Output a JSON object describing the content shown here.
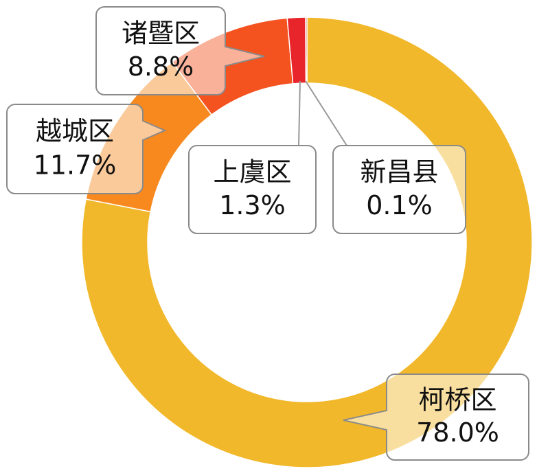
{
  "chart_data": {
    "type": "donut",
    "categories": [
      "柯桥区",
      "越城区",
      "诸暨区",
      "上虞区",
      "新昌县"
    ],
    "values": [
      78.0,
      11.7,
      8.8,
      1.3,
      0.1
    ],
    "value_labels": [
      "78.0%",
      "11.7%",
      "8.8%",
      "1.3%",
      "0.1%"
    ],
    "colors": [
      "#f2b82b",
      "#f7891f",
      "#f4521f",
      "#e7252a",
      "#c81f1f"
    ]
  }
}
